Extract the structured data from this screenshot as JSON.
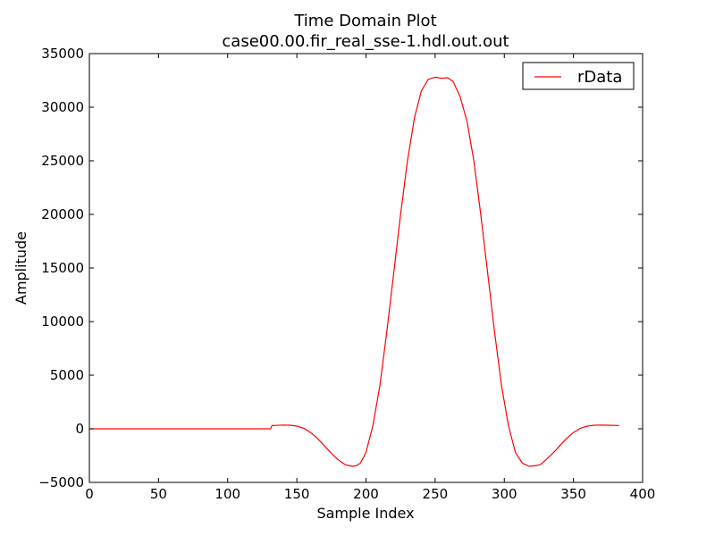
{
  "chart_data": {
    "type": "line",
    "title": "Time Domain Plot",
    "subtitle": "case00.00.fir_real_sse-1.hdl.out.out",
    "xlabel": "Sample Index",
    "ylabel": "Amplitude",
    "xlim": [
      0,
      400
    ],
    "ylim": [
      -5000,
      35000
    ],
    "x_ticks": [
      0,
      50,
      100,
      150,
      200,
      250,
      300,
      350,
      400
    ],
    "y_ticks": [
      -5000,
      0,
      5000,
      10000,
      15000,
      20000,
      25000,
      30000,
      35000
    ],
    "x_tick_labels": [
      "0",
      "50",
      "100",
      "150",
      "200",
      "250",
      "300",
      "350",
      "400"
    ],
    "y_tick_labels": [
      "−5000",
      "0",
      "5000",
      "10000",
      "15000",
      "20000",
      "25000",
      "30000",
      "35000"
    ],
    "grid": false,
    "legend": {
      "position": "top-right"
    },
    "series": [
      {
        "name": "rData",
        "color": "#ff0000",
        "x": [
          0,
          50,
          100,
          131,
          132,
          135,
          140,
          145,
          150,
          155,
          160,
          165,
          170,
          175,
          180,
          185,
          190,
          193,
          196,
          200,
          205,
          210,
          215,
          220,
          225,
          230,
          235,
          240,
          245,
          250,
          255,
          259,
          263,
          268,
          273,
          278,
          283,
          288,
          293,
          298,
          303,
          308,
          313,
          318,
          322,
          326,
          330,
          335,
          340,
          345,
          350,
          355,
          360,
          365,
          370,
          375,
          380,
          383
        ],
        "y": [
          0,
          0,
          0,
          0,
          300,
          320,
          350,
          330,
          250,
          50,
          -350,
          -900,
          -1600,
          -2300,
          -2900,
          -3350,
          -3500,
          -3450,
          -3200,
          -2200,
          300,
          4000,
          9000,
          14500,
          20000,
          25000,
          29000,
          31500,
          32600,
          32800,
          32700,
          32750,
          32400,
          31000,
          28700,
          25000,
          20000,
          14500,
          9000,
          4000,
          300,
          -2200,
          -3200,
          -3500,
          -3450,
          -3350,
          -2900,
          -2300,
          -1600,
          -900,
          -350,
          50,
          250,
          330,
          350,
          330,
          320,
          300
        ]
      }
    ]
  }
}
